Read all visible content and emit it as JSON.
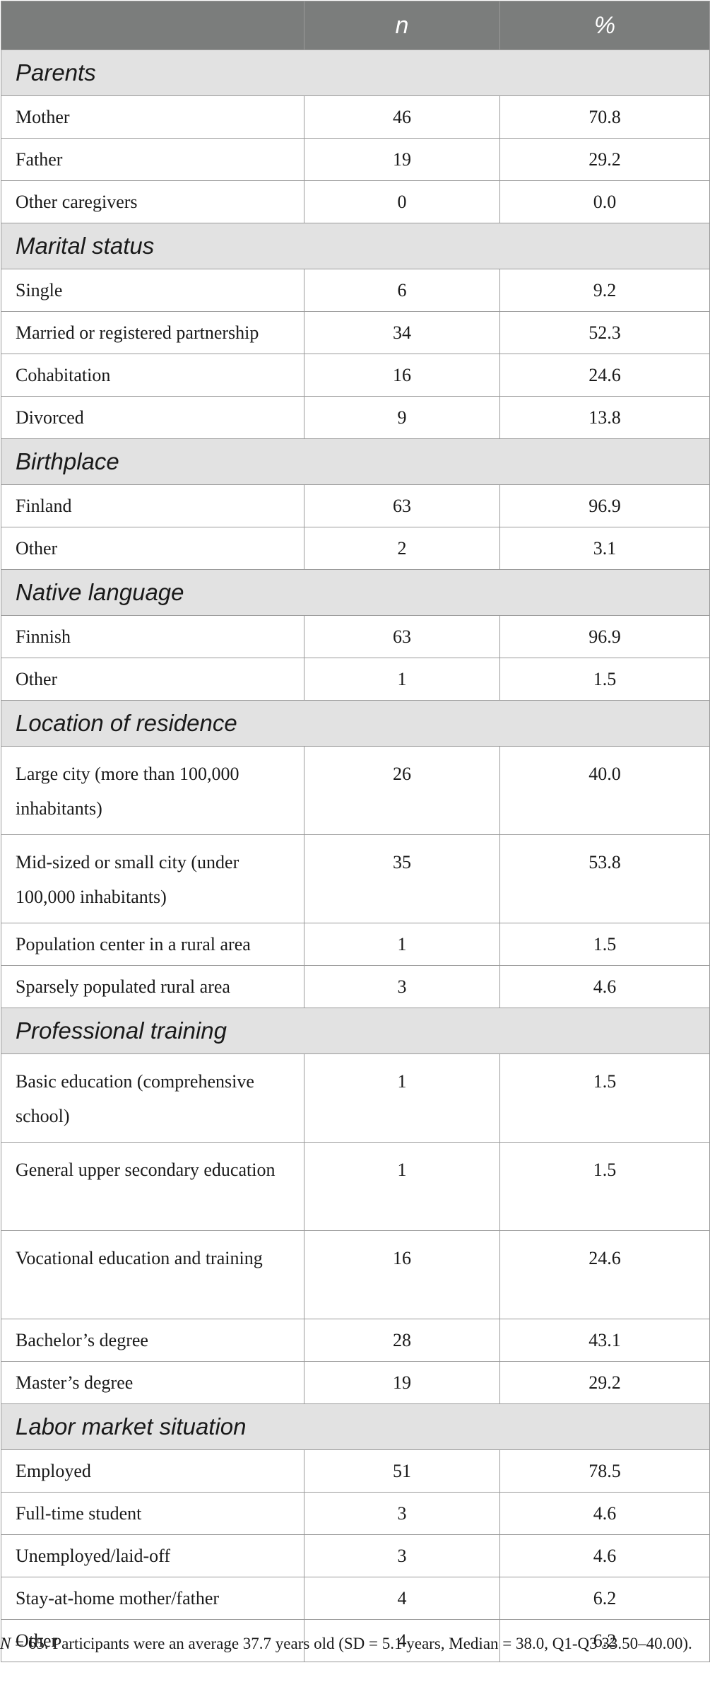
{
  "columns": [
    "",
    "n",
    "%"
  ],
  "sections": [
    {
      "title": "Parents",
      "rows": [
        {
          "label": "Mother",
          "n": "46",
          "pct": "70.8"
        },
        {
          "label": "Father",
          "n": "19",
          "pct": "29.2"
        },
        {
          "label": "Other caregivers",
          "n": "0",
          "pct": "0.0"
        }
      ]
    },
    {
      "title": "Marital status",
      "rows": [
        {
          "label": "Single",
          "n": "6",
          "pct": "9.2"
        },
        {
          "label": "Married or registered partnership",
          "n": "34",
          "pct": "52.3"
        },
        {
          "label": "Cohabitation",
          "n": "16",
          "pct": "24.6"
        },
        {
          "label": "Divorced",
          "n": "9",
          "pct": "13.8"
        }
      ]
    },
    {
      "title": "Birthplace",
      "rows": [
        {
          "label": "Finland",
          "n": "63",
          "pct": "96.9"
        },
        {
          "label": "Other",
          "n": "2",
          "pct": "3.1"
        }
      ]
    },
    {
      "title": "Native language",
      "rows": [
        {
          "label": "Finnish",
          "n": "63",
          "pct": "96.9"
        },
        {
          "label": "Other",
          "n": "1",
          "pct": "1.5"
        }
      ]
    },
    {
      "title": "Location of residence",
      "rows": [
        {
          "label": "Large city (more than 100,000 inhabitants)",
          "n": "26",
          "pct": "40.0",
          "tall": true
        },
        {
          "label": "Mid-sized or small city (under 100,000 inhabitants)",
          "n": "35",
          "pct": "53.8",
          "tall": true
        },
        {
          "label": "Population center in a rural area",
          "n": "1",
          "pct": "1.5"
        },
        {
          "label": "Sparsely populated rural area",
          "n": "3",
          "pct": "4.6"
        }
      ]
    },
    {
      "title": "Professional training",
      "rows": [
        {
          "label": "Basic education (comprehensive school)",
          "n": "1",
          "pct": "1.5",
          "tall": true
        },
        {
          "label": "General upper secondary education",
          "n": "1",
          "pct": "1.5",
          "tall": true
        },
        {
          "label": "Vocational education and training",
          "n": "16",
          "pct": "24.6",
          "tall": true
        },
        {
          "label": "Bachelor’s degree",
          "n": "28",
          "pct": "43.1"
        },
        {
          "label": "Master’s degree",
          "n": "19",
          "pct": "29.2"
        }
      ]
    },
    {
      "title": "Labor market situation",
      "rows": [
        {
          "label": "Employed",
          "n": "51",
          "pct": "78.5"
        },
        {
          "label": "Full-time student",
          "n": "3",
          "pct": "4.6"
        },
        {
          "label": "Unemployed/laid-off",
          "n": "3",
          "pct": "4.6"
        },
        {
          "label": "Stay-at-home mother/father",
          "n": "4",
          "pct": "6.2"
        },
        {
          "label": "Other",
          "n": "4",
          "pct": "6.2"
        }
      ]
    }
  ],
  "footnote": {
    "n_symbol": "N",
    "text": " = 65. Participants were an average 37.7 years old (SD = 5.1 years, Median = 38.0, Q1-Q3 33.50–40.00)."
  }
}
